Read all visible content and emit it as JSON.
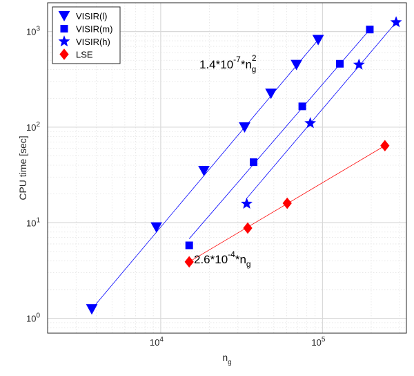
{
  "chart_data": {
    "type": "scatter",
    "xscale": "log",
    "yscale": "log",
    "xlim": [
      2000,
      330000
    ],
    "ylim": [
      0.7,
      2000
    ],
    "xlabel": "n",
    "xlabel_sub": "g",
    "ylabel": "CPU time [sec]",
    "grid": true,
    "legend": "top-left",
    "x_ticks": [
      {
        "value": 10000,
        "base": "10",
        "exp": "4"
      },
      {
        "value": 100000,
        "base": "10",
        "exp": "5"
      }
    ],
    "y_ticks": [
      {
        "value": 1,
        "base": "10",
        "exp": "0"
      },
      {
        "value": 10,
        "base": "10",
        "exp": "1"
      },
      {
        "value": 100,
        "base": "10",
        "exp": "2"
      },
      {
        "value": 1000,
        "base": "10",
        "exp": "3"
      }
    ],
    "series": [
      {
        "name": "VISIR(l)",
        "marker": "triangle-down",
        "color": "#0000ff",
        "points": [
          [
            3750,
            1.25
          ],
          [
            9400,
            9
          ],
          [
            18500,
            35
          ],
          [
            33000,
            100
          ],
          [
            48000,
            225
          ],
          [
            69000,
            450
          ],
          [
            94000,
            820
          ]
        ],
        "fit": [
          [
            3750,
            1.25
          ],
          [
            94000,
            820
          ]
        ]
      },
      {
        "name": "VISIR(m)",
        "marker": "square",
        "color": "#0000ff",
        "points": [
          [
            15000,
            5.8
          ],
          [
            37500,
            43
          ],
          [
            75000,
            165
          ],
          [
            128000,
            460
          ],
          [
            196000,
            1050
          ]
        ],
        "fit": [
          [
            15000,
            6.8
          ],
          [
            196000,
            1050
          ]
        ]
      },
      {
        "name": "VISIR(h)",
        "marker": "star",
        "color": "#0000ff",
        "points": [
          [
            34000,
            15.8
          ],
          [
            84000,
            110
          ],
          [
            168000,
            450
          ],
          [
            285000,
            1250
          ]
        ],
        "fit": [
          [
            34000,
            18
          ],
          [
            285000,
            1250
          ]
        ]
      },
      {
        "name": "LSE",
        "marker": "diamond",
        "color": "#ff0000",
        "points": [
          [
            15000,
            3.9
          ],
          [
            34500,
            8.8
          ],
          [
            60500,
            16
          ],
          [
            243000,
            64
          ]
        ],
        "fit": [
          [
            15000,
            3.9
          ],
          [
            243000,
            64
          ]
        ]
      }
    ],
    "annotations": [
      {
        "base": "1.4*10",
        "exp": "-7",
        "mid": "*n",
        "sub": "g",
        "sup2": "2"
      },
      {
        "base": "2.6*10",
        "exp": "-4",
        "mid": "*n",
        "sub": "g",
        "sup2": ""
      }
    ]
  }
}
